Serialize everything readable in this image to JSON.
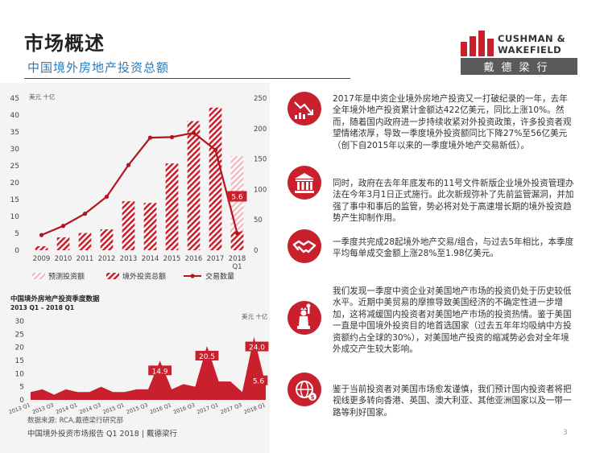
{
  "header": {
    "title": "市场概述",
    "subtitle": "中国境外房地产投资总额",
    "logo_line1": "CUSHMAN &",
    "logo_line2": "WAKEFIELD",
    "logo_cn": "戴德梁行"
  },
  "chart_data": [
    {
      "type": "bar",
      "unit_label": "美元 十亿",
      "categories": [
        "2009",
        "2010",
        "2011",
        "2012",
        "2013",
        "2014",
        "2015",
        "2016",
        "2017",
        "2018 Q1"
      ],
      "y_left_ticks": [
        "45",
        "40",
        "35",
        "30",
        "25",
        "20",
        "15",
        "10",
        "5",
        "0"
      ],
      "y_right_ticks": [
        "250",
        "200",
        "150",
        "100",
        "50",
        "0"
      ],
      "series": [
        {
          "name": "预测投资额",
          "style": "light-hatch",
          "values": [
            null,
            null,
            null,
            null,
            null,
            null,
            null,
            null,
            null,
            27.8
          ]
        },
        {
          "name": "境外投资总额",
          "style": "red-hatch",
          "values": [
            1.2,
            3.8,
            5.1,
            6.2,
            14.5,
            14.0,
            25.7,
            38.2,
            42.2,
            5.6
          ]
        },
        {
          "name": "交易数量",
          "style": "line",
          "axis": "right",
          "values": [
            25,
            40,
            60,
            88,
            140,
            185,
            186,
            193,
            165,
            28
          ]
        }
      ],
      "data_labels": [
        {
          "index": 9,
          "text": "5.6"
        }
      ],
      "ylim_left": [
        0,
        45
      ],
      "ylim_right": [
        0,
        250
      ]
    },
    {
      "type": "area",
      "title": "中国境外房地产投资季度数据",
      "subtitle": "2013 Q1 – 2018 Q1",
      "unit_label": "美元 十亿",
      "categories": [
        "2013 Q1",
        "2013 Q2",
        "2013 Q3",
        "2013 Q4",
        "2014 Q1",
        "2014 Q2",
        "2014 Q3",
        "2014 Q4",
        "2015 Q1",
        "2015 Q2",
        "2015 Q3",
        "2015 Q4",
        "2016 Q1",
        "2016 Q2",
        "2016 Q3",
        "2016 Q4",
        "2017 Q1",
        "2017 Q2",
        "2017 Q3",
        "2017 Q4",
        "2018 Q1"
      ],
      "x_tick_labels": [
        "2013 Q1",
        "2013 Q3",
        "2014 Q1",
        "2014 Q3",
        "2015 Q1",
        "2015 Q3",
        "2016 Q1",
        "2016 Q3",
        "2017 Q1",
        "2017 Q3",
        "2018 Q1"
      ],
      "y_ticks": [
        "30",
        "25",
        "20",
        "15",
        "10",
        "5",
        "0"
      ],
      "values": [
        3,
        4,
        2,
        4,
        3,
        3,
        5,
        3,
        3,
        4,
        4,
        14.9,
        4,
        6,
        5,
        20.5,
        7,
        7,
        3,
        24.0,
        5.6
      ],
      "data_labels": [
        {
          "index": 11,
          "text": "14.9"
        },
        {
          "index": 15,
          "text": "20.5"
        },
        {
          "index": 19,
          "text": "24.0"
        },
        {
          "index": 20,
          "text": "5.6"
        }
      ],
      "ylim": [
        0,
        30
      ]
    }
  ],
  "paragraphs": [
    {
      "icon": "declining-chart-icon",
      "text": "2017年是中资企业境外房地产投资又一打破纪录的一年，去年全年境外地产投资累计金额达422亿美元，同比上涨10%。然而，随着国内政府进一步持续收紧对外投资政策，许多投资者观望情绪浓厚，导致一季度境外投资额同比下降27%至56亿美元（创下自2015年以来的一季度境外地产交易新低）。"
    },
    {
      "icon": "government-building-icon",
      "text": "同时，政府在去年年底发布的11号文件新版企业境外投资管理办法在今年3月1日正式施行。此次新规弥补了先前监管漏洞，并加强了事中和事后的监管，势必将对处于高速增长期的境外投资趋势产生抑制作用。"
    },
    {
      "icon": "handshake-icon",
      "text": "一季度共完成28起境外地产交易/组合，与过去5年相比，本季度平均每单成交金额上涨28%至1.98亿美元。"
    },
    {
      "icon": "statue-of-liberty-icon",
      "text": "我们发现一季度中资企业对美国地产市场的投资仍处于历史较低水平。近期中美贸易的摩擦导致美国经济的不确定性进一步增加，这将减缓国内投资者对美国地产市场的投资热情。鉴于美国一直是中国境外投资目的地首选国家（过去五年年均吸纳中方投资额约占全球的30%），对美国地产投资的缩减势必会对全年境外成交产生较大影响。"
    },
    {
      "icon": "globe-money-icon",
      "text": "鉴于当前投资者对美国市场愈发谨慎，我们预计国内投资者将把视线更多转向香港、英国、澳大利亚、其他亚洲国家以及一带一路等利好国家。"
    }
  ],
  "footer": {
    "source": "数据来源: RCA,戴德梁行研究部",
    "report": "中国境外投资市场报告 Q1 2018 | 戴德梁行",
    "page": "3"
  },
  "colors": {
    "accent": "#c8202d",
    "blue": "#2a7ab8",
    "logo_grey": "#5a5a5a"
  }
}
